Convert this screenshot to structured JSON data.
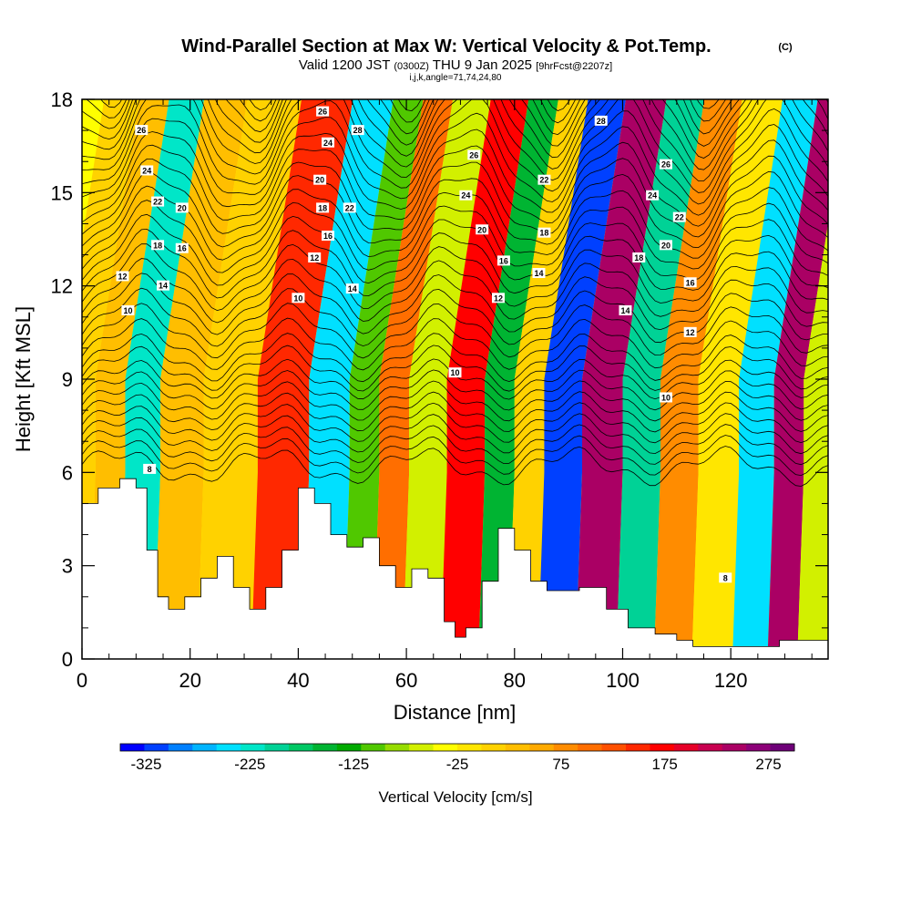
{
  "header": {
    "title": "Wind-Parallel Section at Max W: Vertical Velocity & Pot.Temp.",
    "title_mark": "(C)",
    "valid_prefix": "Valid 1200 JST",
    "valid_utc": "(0300Z)",
    "valid_date": "THU 9 Jan 2025",
    "forecast": "[9hrFcst@2207z]",
    "indices": "i,j,k,angle=71,74,24,80"
  },
  "chart_data": {
    "type": "heatmap",
    "title": "Wind-Parallel Section at Max W: Vertical Velocity & Pot.Temp.",
    "xlabel": "Distance [nm]",
    "ylabel": "Height [Kft MSL]",
    "xlim": [
      0,
      138
    ],
    "ylim": [
      0,
      18
    ],
    "x_ticks": [
      "0",
      "20",
      "40",
      "60",
      "80",
      "100",
      "120"
    ],
    "y_ticks": [
      "0",
      "3",
      "6",
      "9",
      "12",
      "15",
      "18"
    ],
    "colorbar": {
      "label": "Vertical Velocity [cm/s]",
      "tick_labels": [
        "-325",
        "-225",
        "-125",
        "-25",
        "75",
        "175",
        "275"
      ],
      "min": -350,
      "max": 300,
      "colors": [
        "#0000ff",
        "#0040ff",
        "#0080ff",
        "#00b4ff",
        "#00e0ff",
        "#00e6c8",
        "#00d296",
        "#00c864",
        "#00b432",
        "#00aa00",
        "#50c800",
        "#96dc00",
        "#d2f000",
        "#ffff00",
        "#ffe600",
        "#ffd200",
        "#ffbe00",
        "#ffaa00",
        "#ff8c00",
        "#ff6e00",
        "#ff5000",
        "#ff2800",
        "#ff0000",
        "#e60028",
        "#c80050",
        "#aa0064",
        "#8c0078",
        "#6e0078"
      ]
    },
    "vertical_velocity_bands": [
      {
        "x": 0,
        "w": 20
      },
      {
        "x": 5,
        "w": 30
      },
      {
        "x": 11,
        "w": -230
      },
      {
        "x": 18,
        "w": 30
      },
      {
        "x": 27,
        "w": 10
      },
      {
        "x": 38,
        "w": 150
      },
      {
        "x": 46,
        "w": -250
      },
      {
        "x": 53,
        "w": -100
      },
      {
        "x": 57,
        "w": 100
      },
      {
        "x": 64,
        "w": -50
      },
      {
        "x": 71,
        "w": 170
      },
      {
        "x": 78,
        "w": -150
      },
      {
        "x": 82,
        "w": 20
      },
      {
        "x": 89,
        "w": -325
      },
      {
        "x": 96,
        "w": 250
      },
      {
        "x": 104,
        "w": -200
      },
      {
        "x": 110,
        "w": 80
      },
      {
        "x": 118,
        "w": -20
      },
      {
        "x": 125,
        "w": -250
      },
      {
        "x": 131,
        "w": 250
      },
      {
        "x": 136,
        "w": -50
      }
    ],
    "terrain_kft": [
      {
        "x": 0,
        "h": 5.0
      },
      {
        "x": 3,
        "h": 5.5
      },
      {
        "x": 7,
        "h": 5.8
      },
      {
        "x": 10,
        "h": 5.5
      },
      {
        "x": 12,
        "h": 3.5
      },
      {
        "x": 14,
        "h": 2.0
      },
      {
        "x": 16,
        "h": 1.6
      },
      {
        "x": 19,
        "h": 2.0
      },
      {
        "x": 22,
        "h": 2.6
      },
      {
        "x": 25,
        "h": 3.3
      },
      {
        "x": 28,
        "h": 2.3
      },
      {
        "x": 31,
        "h": 1.6
      },
      {
        "x": 34,
        "h": 2.3
      },
      {
        "x": 37,
        "h": 3.5
      },
      {
        "x": 40,
        "h": 5.5
      },
      {
        "x": 43,
        "h": 5.0
      },
      {
        "x": 46,
        "h": 4.0
      },
      {
        "x": 49,
        "h": 3.6
      },
      {
        "x": 52,
        "h": 3.9
      },
      {
        "x": 55,
        "h": 3.0
      },
      {
        "x": 58,
        "h": 2.3
      },
      {
        "x": 61,
        "h": 2.9
      },
      {
        "x": 64,
        "h": 2.6
      },
      {
        "x": 67,
        "h": 1.2
      },
      {
        "x": 69,
        "h": 0.7
      },
      {
        "x": 71,
        "h": 1.0
      },
      {
        "x": 74,
        "h": 2.5
      },
      {
        "x": 77,
        "h": 4.2
      },
      {
        "x": 80,
        "h": 3.5
      },
      {
        "x": 83,
        "h": 2.5
      },
      {
        "x": 86,
        "h": 2.2
      },
      {
        "x": 92,
        "h": 2.3
      },
      {
        "x": 97,
        "h": 1.6
      },
      {
        "x": 101,
        "h": 1.0
      },
      {
        "x": 106,
        "h": 0.8
      },
      {
        "x": 110,
        "h": 0.6
      },
      {
        "x": 113,
        "h": 0.4
      },
      {
        "x": 126,
        "h": 0.4
      },
      {
        "x": 129,
        "h": 0.6
      },
      {
        "x": 138,
        "h": 0.6
      }
    ],
    "theta_contour_labels": [
      {
        "x": 11,
        "y": 17,
        "text": "26"
      },
      {
        "x": 12,
        "y": 15.7,
        "text": "24"
      },
      {
        "x": 14,
        "y": 14.7,
        "text": "22"
      },
      {
        "x": 18.5,
        "y": 14.5,
        "text": "20"
      },
      {
        "x": 14,
        "y": 13.3,
        "text": "18"
      },
      {
        "x": 18.5,
        "y": 13.2,
        "text": "16"
      },
      {
        "x": 7.5,
        "y": 12.3,
        "text": "12"
      },
      {
        "x": 15,
        "y": 12.0,
        "text": "14"
      },
      {
        "x": 8.5,
        "y": 11.2,
        "text": "10"
      },
      {
        "x": 12.5,
        "y": 6.1,
        "text": "8"
      },
      {
        "x": 44.5,
        "y": 17.6,
        "text": "26"
      },
      {
        "x": 51,
        "y": 17.0,
        "text": "28"
      },
      {
        "x": 45.5,
        "y": 16.6,
        "text": "24"
      },
      {
        "x": 44,
        "y": 15.4,
        "text": "20"
      },
      {
        "x": 44.5,
        "y": 14.5,
        "text": "18"
      },
      {
        "x": 49.5,
        "y": 14.5,
        "text": "22"
      },
      {
        "x": 45.5,
        "y": 13.6,
        "text": "16"
      },
      {
        "x": 43,
        "y": 12.9,
        "text": "12"
      },
      {
        "x": 40,
        "y": 11.6,
        "text": "10"
      },
      {
        "x": 50,
        "y": 11.9,
        "text": "14"
      },
      {
        "x": 72.5,
        "y": 16.2,
        "text": "26"
      },
      {
        "x": 71,
        "y": 14.9,
        "text": "24"
      },
      {
        "x": 74,
        "y": 13.8,
        "text": "20"
      },
      {
        "x": 78,
        "y": 12.8,
        "text": "16"
      },
      {
        "x": 77,
        "y": 11.6,
        "text": "12"
      },
      {
        "x": 69,
        "y": 9.2,
        "text": "10"
      },
      {
        "x": 85.5,
        "y": 15.4,
        "text": "22"
      },
      {
        "x": 85.5,
        "y": 13.7,
        "text": "18"
      },
      {
        "x": 84.5,
        "y": 12.4,
        "text": "14"
      },
      {
        "x": 96,
        "y": 17.3,
        "text": "28"
      },
      {
        "x": 108,
        "y": 15.9,
        "text": "26"
      },
      {
        "x": 105.5,
        "y": 14.9,
        "text": "24"
      },
      {
        "x": 110.5,
        "y": 14.2,
        "text": "22"
      },
      {
        "x": 108,
        "y": 13.3,
        "text": "20"
      },
      {
        "x": 103,
        "y": 12.9,
        "text": "18"
      },
      {
        "x": 112.5,
        "y": 12.1,
        "text": "16"
      },
      {
        "x": 100.5,
        "y": 11.2,
        "text": "14"
      },
      {
        "x": 112.5,
        "y": 10.5,
        "text": "12"
      },
      {
        "x": 108,
        "y": 8.4,
        "text": "10"
      },
      {
        "x": 119,
        "y": 2.6,
        "text": "8"
      }
    ]
  }
}
